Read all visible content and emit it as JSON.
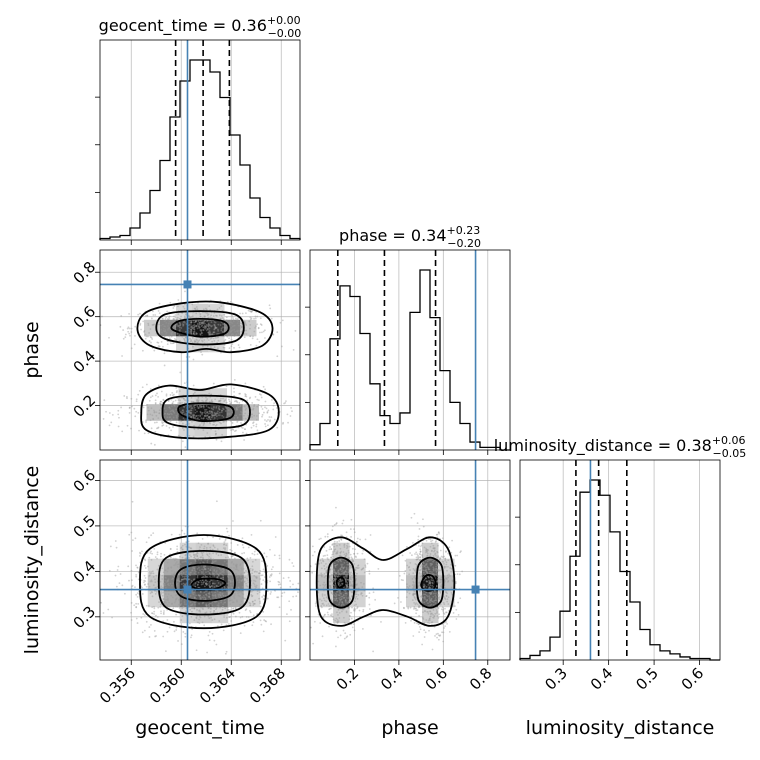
{
  "chart_data": {
    "type": "corner",
    "parameters": [
      {
        "key": "geocent_time",
        "label": "geocent_time",
        "title_name": "geocent_time",
        "title_value": "0.36",
        "title_plus": "+0.00",
        "title_minus": "−0.00",
        "range": [
          0.3535,
          0.3695
        ],
        "ticks": [
          0.356,
          0.36,
          0.364,
          0.368
        ],
        "tick_labels": [
          "0.356",
          "0.360",
          "0.364",
          "0.368"
        ],
        "truth": 0.3605,
        "quantiles": [
          0.35955,
          0.36175,
          0.36385
        ],
        "hist_edges_start": 0.3535,
        "hist_bin_width": 0.0008,
        "hist_counts": [
          1,
          2,
          3,
          8,
          18,
          33,
          53,
          82,
          106,
          120,
          120,
          112,
          95,
          70,
          50,
          28,
          15,
          8,
          3,
          1
        ]
      },
      {
        "key": "phase",
        "label": "phase",
        "title_name": "phase",
        "title_value": "0.34",
        "title_plus": "+0.23",
        "title_minus": "−0.20",
        "range": [
          0.0,
          0.9
        ],
        "ticks": [
          0.2,
          0.4,
          0.6,
          0.8
        ],
        "tick_labels": [
          "0.2",
          "0.4",
          "0.6",
          "0.8"
        ],
        "truth": 0.745,
        "quantiles": [
          0.125,
          0.335,
          0.565
        ],
        "hist_edges_start": 0.0,
        "hist_bin_width": 0.045,
        "hist_counts": [
          2,
          10,
          42,
          62,
          58,
          44,
          25,
          13,
          10,
          14,
          52,
          68,
          50,
          30,
          18,
          10,
          3,
          1,
          1,
          0
        ]
      },
      {
        "key": "luminosity_distance",
        "label": "luminosity_distance",
        "title_name": "luminosity_distance",
        "title_value": "0.38",
        "title_plus": "+0.06",
        "title_minus": "−0.05",
        "range": [
          0.205,
          0.645
        ],
        "ticks": [
          0.3,
          0.4,
          0.5,
          0.6
        ],
        "tick_labels": [
          "0.3",
          "0.4",
          "0.5",
          "0.6"
        ],
        "truth": 0.36,
        "quantiles": [
          0.328,
          0.378,
          0.44
        ],
        "hist_edges_start": 0.205,
        "hist_bin_width": 0.022,
        "hist_counts": [
          1,
          3,
          6,
          15,
          32,
          68,
          110,
          118,
          108,
          84,
          58,
          38,
          20,
          10,
          6,
          4,
          2,
          1,
          1,
          0
        ]
      }
    ],
    "panels_2d": [
      {
        "x": "geocent_time",
        "y": "phase",
        "modes": [
          {
            "center": [
              0.3615,
              0.55
            ],
            "sigma": [
              0.0022,
              0.04
            ],
            "weight": 0.5
          },
          {
            "center": [
              0.3617,
              0.17
            ],
            "sigma": [
              0.0024,
              0.04
            ],
            "weight": 0.5
          }
        ],
        "contours": [
          [
            [
              0.3592,
              0.55
            ],
            [
              0.3598,
              0.53
            ],
            [
              0.3615,
              0.51
            ],
            [
              0.3633,
              0.52
            ],
            [
              0.3638,
              0.55
            ],
            [
              0.3633,
              0.58
            ],
            [
              0.3615,
              0.59
            ],
            [
              0.3598,
              0.58
            ]
          ],
          [
            [
              0.358,
              0.55
            ],
            [
              0.3587,
              0.5
            ],
            [
              0.3615,
              0.475
            ],
            [
              0.3643,
              0.49
            ],
            [
              0.365,
              0.55
            ],
            [
              0.3643,
              0.61
            ],
            [
              0.3615,
              0.625
            ],
            [
              0.3587,
              0.61
            ]
          ],
          [
            [
              0.3565,
              0.54
            ],
            [
              0.3575,
              0.47
            ],
            [
              0.36,
              0.44
            ],
            [
              0.362,
              0.455
            ],
            [
              0.364,
              0.44
            ],
            [
              0.3665,
              0.47
            ],
            [
              0.3673,
              0.55
            ],
            [
              0.3663,
              0.62
            ],
            [
              0.363,
              0.665
            ],
            [
              0.36,
              0.66
            ],
            [
              0.3572,
              0.62
            ]
          ],
          [
            [
              0.3598,
              0.17
            ],
            [
              0.3605,
              0.145
            ],
            [
              0.3617,
              0.13
            ],
            [
              0.3637,
              0.14
            ],
            [
              0.3642,
              0.17
            ],
            [
              0.3637,
              0.2
            ],
            [
              0.3617,
              0.21
            ],
            [
              0.36,
              0.2
            ]
          ],
          [
            [
              0.3585,
              0.17
            ],
            [
              0.359,
              0.12
            ],
            [
              0.3617,
              0.1
            ],
            [
              0.3648,
              0.11
            ],
            [
              0.3655,
              0.17
            ],
            [
              0.3648,
              0.23
            ],
            [
              0.3617,
              0.245
            ],
            [
              0.359,
              0.23
            ]
          ],
          [
            [
              0.3568,
              0.17
            ],
            [
              0.3572,
              0.09
            ],
            [
              0.36,
              0.055
            ],
            [
              0.364,
              0.06
            ],
            [
              0.367,
              0.09
            ],
            [
              0.3678,
              0.17
            ],
            [
              0.367,
              0.25
            ],
            [
              0.364,
              0.295
            ],
            [
              0.3615,
              0.27
            ],
            [
              0.359,
              0.29
            ],
            [
              0.3572,
              0.25
            ]
          ]
        ]
      },
      {
        "x": "geocent_time",
        "y": "luminosity_distance",
        "modes": [
          {
            "center": [
              0.3618,
              0.375
            ],
            "sigma": [
              0.0023,
              0.04
            ],
            "weight": 1.0
          }
        ],
        "contours": [
          [
            [
              0.3608,
              0.37
            ],
            [
              0.3613,
              0.362
            ],
            [
              0.3625,
              0.36
            ],
            [
              0.3635,
              0.372
            ],
            [
              0.363,
              0.382
            ],
            [
              0.3615,
              0.383
            ]
          ],
          [
            [
              0.3595,
              0.375
            ],
            [
              0.36,
              0.345
            ],
            [
              0.3618,
              0.335
            ],
            [
              0.3638,
              0.345
            ],
            [
              0.3643,
              0.375
            ],
            [
              0.3638,
              0.405
            ],
            [
              0.3618,
              0.415
            ],
            [
              0.36,
              0.405
            ]
          ],
          [
            [
              0.3582,
              0.375
            ],
            [
              0.3588,
              0.32
            ],
            [
              0.3618,
              0.305
            ],
            [
              0.3648,
              0.32
            ],
            [
              0.3655,
              0.375
            ],
            [
              0.3648,
              0.43
            ],
            [
              0.3618,
              0.445
            ],
            [
              0.3588,
              0.43
            ]
          ],
          [
            [
              0.3567,
              0.375
            ],
            [
              0.3575,
              0.3
            ],
            [
              0.3618,
              0.275
            ],
            [
              0.366,
              0.3
            ],
            [
              0.3668,
              0.375
            ],
            [
              0.366,
              0.45
            ],
            [
              0.3618,
              0.48
            ],
            [
              0.3575,
              0.45
            ]
          ]
        ]
      },
      {
        "x": "phase",
        "y": "luminosity_distance",
        "modes": [
          {
            "center": [
              0.14,
              0.375
            ],
            "sigma": [
              0.045,
              0.04
            ],
            "weight": 0.5
          },
          {
            "center": [
              0.54,
              0.375
            ],
            "sigma": [
              0.045,
              0.04
            ],
            "weight": 0.5
          }
        ],
        "contours": [
          [
            [
              0.12,
              0.375
            ],
            [
              0.13,
              0.365
            ],
            [
              0.15,
              0.368
            ],
            [
              0.155,
              0.378
            ],
            [
              0.145,
              0.386
            ],
            [
              0.13,
              0.385
            ]
          ],
          [
            [
              0.08,
              0.375
            ],
            [
              0.09,
              0.335
            ],
            [
              0.14,
              0.32
            ],
            [
              0.19,
              0.335
            ],
            [
              0.2,
              0.375
            ],
            [
              0.19,
              0.415
            ],
            [
              0.14,
              0.43
            ],
            [
              0.09,
              0.415
            ]
          ],
          [
            [
              0.03,
              0.375
            ],
            [
              0.05,
              0.3
            ],
            [
              0.14,
              0.28
            ],
            [
              0.24,
              0.3
            ],
            [
              0.33,
              0.315
            ],
            [
              0.44,
              0.3
            ],
            [
              0.54,
              0.28
            ],
            [
              0.62,
              0.3
            ],
            [
              0.65,
              0.375
            ],
            [
              0.62,
              0.45
            ],
            [
              0.54,
              0.475
            ],
            [
              0.44,
              0.45
            ],
            [
              0.33,
              0.425
            ],
            [
              0.24,
              0.45
            ],
            [
              0.14,
              0.475
            ],
            [
              0.05,
              0.45
            ]
          ],
          [
            [
              0.5,
              0.37
            ],
            [
              0.52,
              0.358
            ],
            [
              0.555,
              0.36
            ],
            [
              0.565,
              0.375
            ],
            [
              0.55,
              0.39
            ],
            [
              0.52,
              0.39
            ]
          ],
          [
            [
              0.48,
              0.375
            ],
            [
              0.49,
              0.335
            ],
            [
              0.54,
              0.32
            ],
            [
              0.59,
              0.335
            ],
            [
              0.6,
              0.375
            ],
            [
              0.59,
              0.415
            ],
            [
              0.54,
              0.43
            ],
            [
              0.49,
              0.415
            ]
          ]
        ]
      }
    ],
    "layout": "lower-triangle corner plot, 3x3 panels",
    "grid": true,
    "quantile_levels": [
      0.16,
      0.5,
      0.84
    ]
  }
}
